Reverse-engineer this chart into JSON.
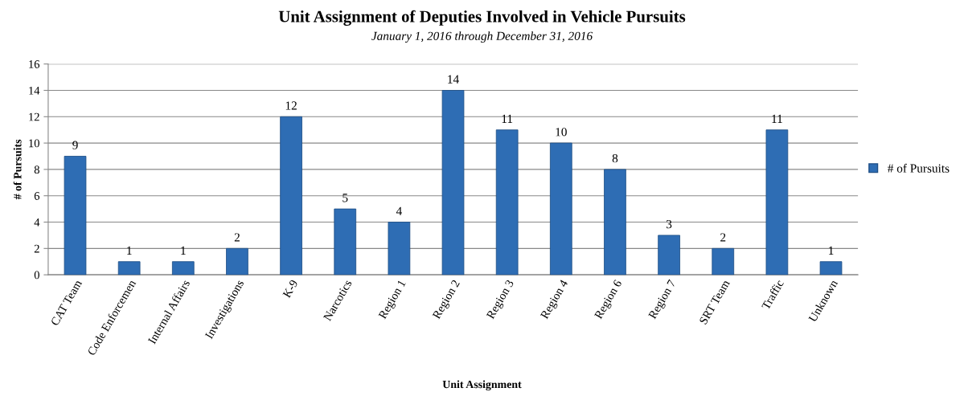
{
  "chart_data": {
    "type": "bar",
    "title": "Unit Assignment of Deputies Involved in Vehicle Pursuits",
    "subtitle": "January 1, 2016 through December 31, 2016",
    "xlabel": "Unit Assignment",
    "ylabel": "# of Pursuits",
    "categories": [
      "CAT Team",
      "Code Enforcemen",
      "Internal Affairs",
      "Investigations",
      "K-9",
      "Narcotics",
      "Region 1",
      "Region 2",
      "Region 3",
      "Region 4",
      "Region 6",
      "Region 7",
      "SRT Team",
      "Traffic",
      "Unknown"
    ],
    "series": [
      {
        "name": "# of Pursuits",
        "color": "#2e6db4",
        "values": [
          9,
          1,
          1,
          2,
          12,
          5,
          4,
          14,
          11,
          10,
          8,
          3,
          2,
          11,
          1
        ]
      }
    ],
    "ylim": [
      0,
      16
    ],
    "yticks": [
      0,
      2,
      4,
      6,
      8,
      10,
      12,
      14,
      16
    ],
    "grid": "y",
    "legend": "right",
    "data_labels": true
  }
}
